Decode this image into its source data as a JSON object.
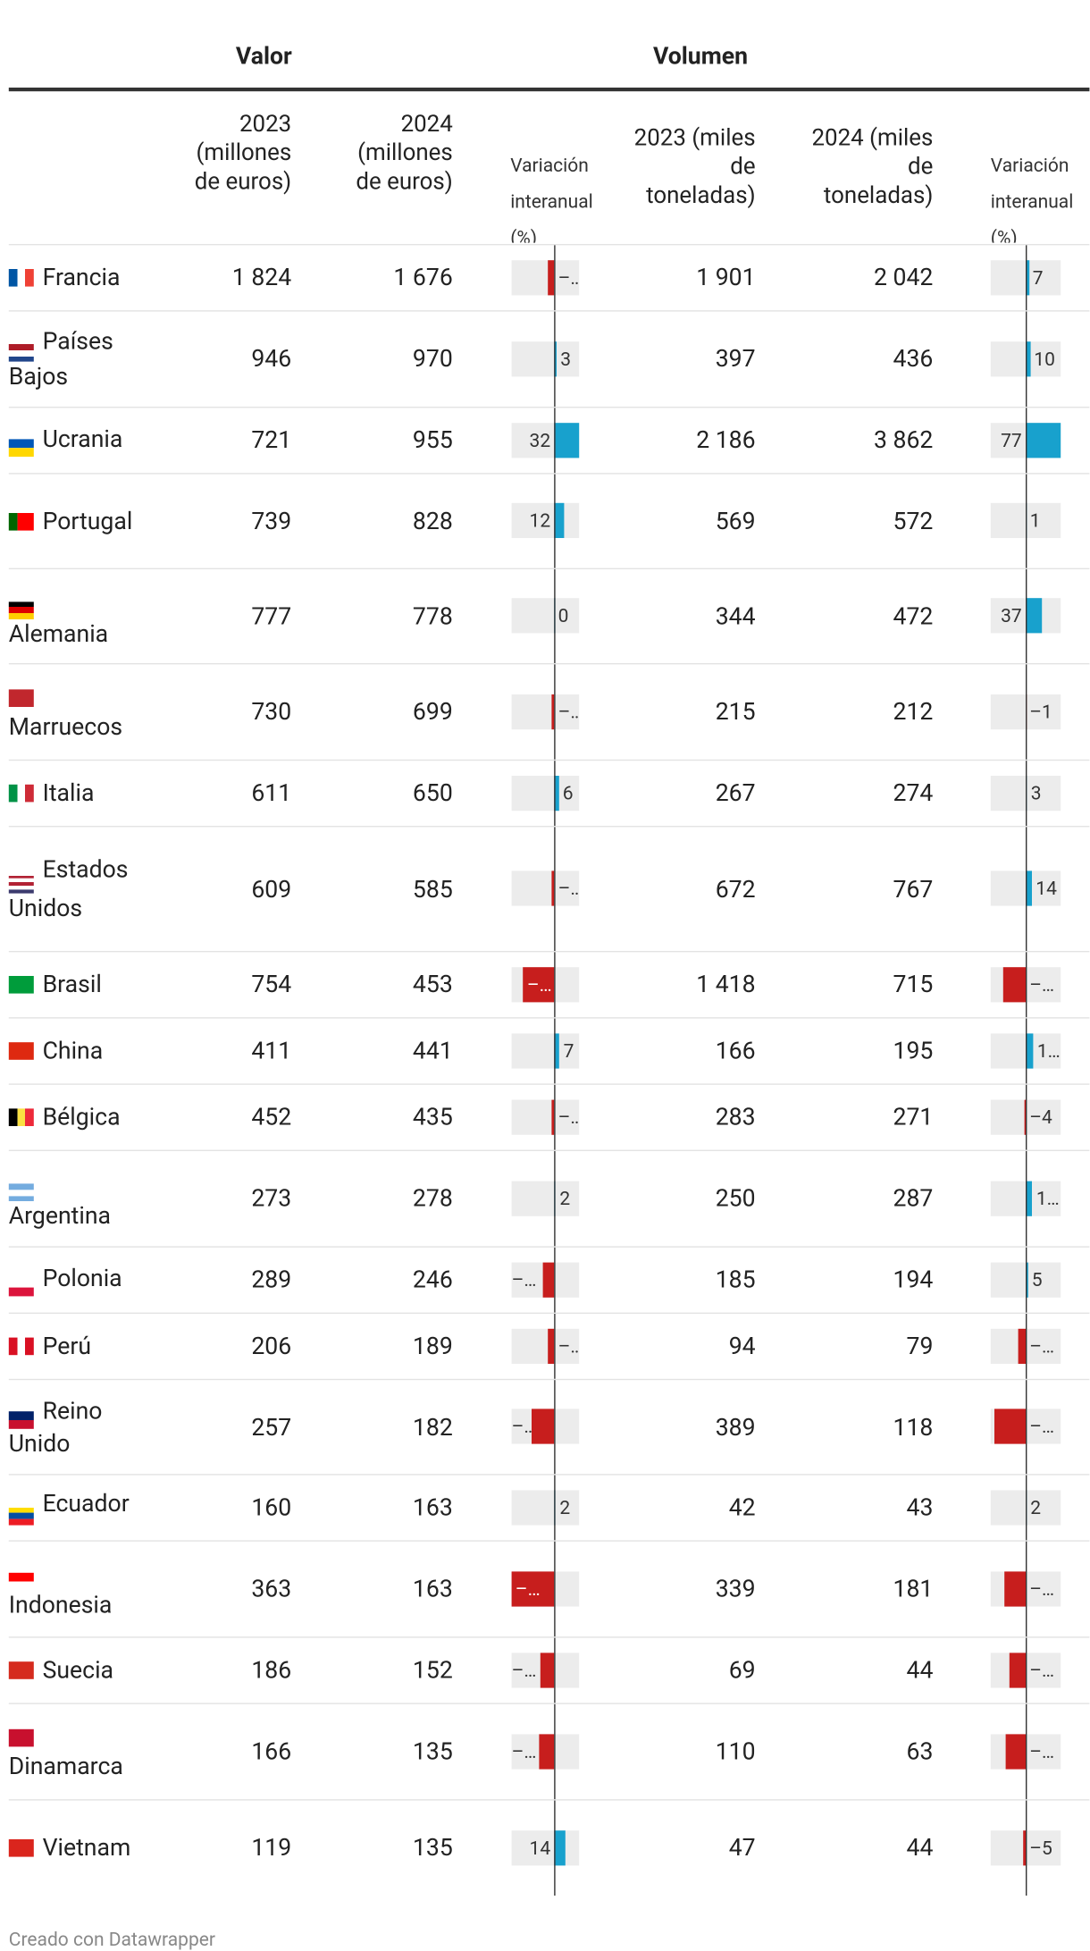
{
  "header": {
    "valor": "Valor",
    "volumen": "Volumen"
  },
  "columns": [
    "2023 (millones de euros)",
    "2024 (millones de euros)",
    "Variación interanual (%)",
    "2023 (miles de toneladas)",
    "2024 (miles de toneladas)",
    "Variación interanual (%)"
  ],
  "valor_var_range": [
    -55,
    32
  ],
  "volumen_var_range": [
    -77,
    77
  ],
  "rows": [
    {
      "country": "Francia",
      "valor_2023": "1 824",
      "valor_2024": "1 676",
      "valor_var": {
        "value": -8,
        "label": "–…"
      },
      "volumen_2023": "1 901",
      "volumen_2024": "2 042",
      "volumen_var": 7
    },
    {
      "country": "Países Bajos",
      "valor_2023": "946",
      "valor_2024": "970",
      "valor_var": 3,
      "volumen_2023": "397",
      "volumen_2024": "436",
      "volumen_var": 10
    },
    {
      "country": "Ucrania",
      "valor_2023": "721",
      "valor_2024": "955",
      "valor_var": 32,
      "volumen_2023": "2 186",
      "volumen_2024": "3 862",
      "volumen_var": 77
    },
    {
      "country": "Portugal",
      "valor_2023": "739",
      "valor_2024": "828",
      "valor_var": 12,
      "volumen_2023": "569",
      "volumen_2024": "572",
      "volumen_var": 1
    },
    {
      "country": "Alemania",
      "valor_2023": "777",
      "valor_2024": "778",
      "valor_var": 0,
      "volumen_2023": "344",
      "volumen_2024": "472",
      "volumen_var": 37
    },
    {
      "country": "Marruecos",
      "valor_2023": "730",
      "valor_2024": "699",
      "valor_var": {
        "value": -4,
        "label": "–…"
      },
      "volumen_2023": "215",
      "volumen_2024": "212",
      "volumen_var": {
        "value": -1,
        "label": "–1"
      }
    },
    {
      "country": "Italia",
      "valor_2023": "611",
      "valor_2024": "650",
      "valor_var": 6,
      "volumen_2023": "267",
      "volumen_2024": "274",
      "volumen_var": 3
    },
    {
      "country": "Estados Unidos",
      "valor_2023": "609",
      "valor_2024": "585",
      "valor_var": {
        "value": -4,
        "label": "–…"
      },
      "volumen_2023": "672",
      "volumen_2024": "767",
      "volumen_var": 14
    },
    {
      "country": "Brasil",
      "valor_2023": "754",
      "valor_2024": "453",
      "valor_var": {
        "value": -40,
        "label": "–…"
      },
      "volumen_2023": "1 418",
      "volumen_2024": "715",
      "volumen_var": {
        "value": -50,
        "label": "–…"
      }
    },
    {
      "country": "China",
      "valor_2023": "411",
      "valor_2024": "441",
      "valor_var": 7,
      "volumen_2023": "166",
      "volumen_2024": "195",
      "volumen_var": {
        "value": 17,
        "label": "1…"
      }
    },
    {
      "country": "Bélgica",
      "valor_2023": "452",
      "valor_2024": "435",
      "valor_var": {
        "value": -4,
        "label": "–…"
      },
      "volumen_2023": "283",
      "volumen_2024": "271",
      "volumen_var": {
        "value": -4,
        "label": "–4"
      }
    },
    {
      "country": "Argentina",
      "valor_2023": "273",
      "valor_2024": "278",
      "valor_var": 2,
      "volumen_2023": "250",
      "volumen_2024": "287",
      "volumen_var": {
        "value": 15,
        "label": "1…"
      }
    },
    {
      "country": "Polonia",
      "valor_2023": "289",
      "valor_2024": "246",
      "valor_var": {
        "value": -15,
        "label": "–…"
      },
      "volumen_2023": "185",
      "volumen_2024": "194",
      "volumen_var": 5
    },
    {
      "country": "Perú",
      "valor_2023": "206",
      "valor_2024": "189",
      "valor_var": {
        "value": -8,
        "label": "–…"
      },
      "volumen_2023": "94",
      "volumen_2024": "79",
      "volumen_var": {
        "value": -16,
        "label": "–…"
      }
    },
    {
      "country": "Reino Unido",
      "valor_2023": "257",
      "valor_2024": "182",
      "valor_var": {
        "value": -29,
        "label": "–…"
      },
      "volumen_2023": "389",
      "volumen_2024": "118",
      "volumen_var": {
        "value": -70,
        "label": "–…"
      }
    },
    {
      "country": "Ecuador",
      "valor_2023": "160",
      "valor_2024": "163",
      "valor_var": 2,
      "volumen_2023": "42",
      "volumen_2024": "43",
      "volumen_var": 2
    },
    {
      "country": "Indonesia",
      "valor_2023": "363",
      "valor_2024": "163",
      "valor_var": {
        "value": -55,
        "label": "–…"
      },
      "volumen_2023": "339",
      "volumen_2024": "181",
      "volumen_var": {
        "value": -47,
        "label": "–…"
      }
    },
    {
      "country": "Suecia",
      "valor_2023": "186",
      "valor_2024": "152",
      "valor_var": {
        "value": -18,
        "label": "–…"
      },
      "volumen_2023": "69",
      "volumen_2024": "44",
      "volumen_var": {
        "value": -36,
        "label": "–…"
      }
    },
    {
      "country": "Dinamarca",
      "valor_2023": "166",
      "valor_2024": "135",
      "valor_var": {
        "value": -19,
        "label": "–…"
      },
      "volumen_2023": "110",
      "volumen_2024": "63",
      "volumen_var": {
        "value": -43,
        "label": "–…"
      }
    },
    {
      "country": "Vietnam",
      "valor_2023": "119",
      "valor_2024": "135",
      "valor_var": 14,
      "volumen_2023": "47",
      "volumen_2024": "44",
      "volumen_var": {
        "value": -5,
        "label": "–5"
      }
    }
  ],
  "footer": "Creado con Datawrapper"
}
